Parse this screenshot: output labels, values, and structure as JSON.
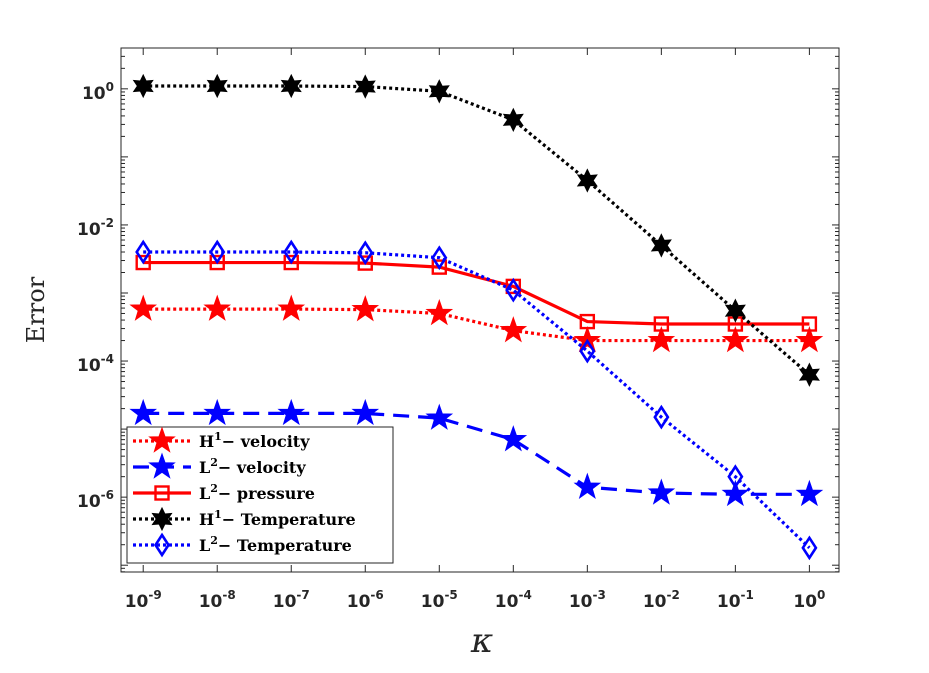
{
  "chart_data": {
    "type": "line",
    "title": "",
    "xlabel": "κ",
    "ylabel": "Error",
    "xscale": "log",
    "yscale": "log",
    "xlim_exp": [
      -9.3,
      0.4
    ],
    "ylim_exp": [
      -7.1,
      0.6
    ],
    "x_exponents": [
      -9,
      -8,
      -7,
      -6,
      -5,
      -4,
      -3,
      -2,
      -1,
      0
    ],
    "x_tick_labels": [
      {
        "base": "10",
        "exp": "-9"
      },
      {
        "base": "10",
        "exp": "-8"
      },
      {
        "base": "10",
        "exp": "-7"
      },
      {
        "base": "10",
        "exp": "-6"
      },
      {
        "base": "10",
        "exp": "-5"
      },
      {
        "base": "10",
        "exp": "-4"
      },
      {
        "base": "10",
        "exp": "-3"
      },
      {
        "base": "10",
        "exp": "-2"
      },
      {
        "base": "10",
        "exp": "-1"
      },
      {
        "base": "10",
        "exp": "0"
      }
    ],
    "y_tick_exponents": [
      0,
      -2,
      -4,
      -6
    ],
    "y_tick_labels": [
      {
        "base": "10",
        "exp": "0"
      },
      {
        "base": "10",
        "exp": "-2"
      },
      {
        "base": "10",
        "exp": "-4"
      },
      {
        "base": "10",
        "exp": "-6"
      }
    ],
    "legend_position": "bottom-left",
    "series": [
      {
        "name": "H1- velocity",
        "label_main": "H",
        "label_sup": "1",
        "label_rest": "− velocity",
        "color": "#ff0000",
        "line": "dotted",
        "marker": "star5",
        "values": [
          0.00058,
          0.00058,
          0.00058,
          0.00057,
          0.0005,
          0.00028,
          0.0002,
          0.0002,
          0.0002,
          0.0002
        ]
      },
      {
        "name": "L2- velocity",
        "label_main": "L",
        "label_sup": "2",
        "label_rest": "− velocity",
        "color": "#0000ff",
        "line": "dashed",
        "marker": "star5",
        "values": [
          1.7e-05,
          1.7e-05,
          1.7e-05,
          1.7e-05,
          1.45e-05,
          7e-06,
          1.4e-06,
          1.15e-06,
          1.1e-06,
          1.1e-06
        ]
      },
      {
        "name": "L2- pressure",
        "label_main": "L",
        "label_sup": "2",
        "label_rest": "− pressure",
        "color": "#ff0000",
        "line": "solid",
        "marker": "square",
        "values": [
          0.0028,
          0.0028,
          0.0028,
          0.00275,
          0.0024,
          0.00125,
          0.00038,
          0.00035,
          0.00035,
          0.00035
        ]
      },
      {
        "name": "H1- Temperature",
        "label_main": "H",
        "label_sup": "1",
        "label_rest": "− Temperature",
        "color": "#000000",
        "line": "dotted",
        "marker": "star6",
        "values": [
          1.1,
          1.1,
          1.1,
          1.08,
          0.92,
          0.35,
          0.045,
          0.005,
          0.00055,
          6.3e-05
        ]
      },
      {
        "name": "L2- Temperature",
        "label_main": "L",
        "label_sup": "2",
        "label_rest": "− Temperature",
        "color": "#0000ff",
        "line": "dotted",
        "marker": "diamond",
        "values": [
          0.004,
          0.004,
          0.004,
          0.0039,
          0.0033,
          0.0011,
          0.00014,
          1.5e-05,
          2e-06,
          1.8e-07
        ]
      }
    ]
  }
}
